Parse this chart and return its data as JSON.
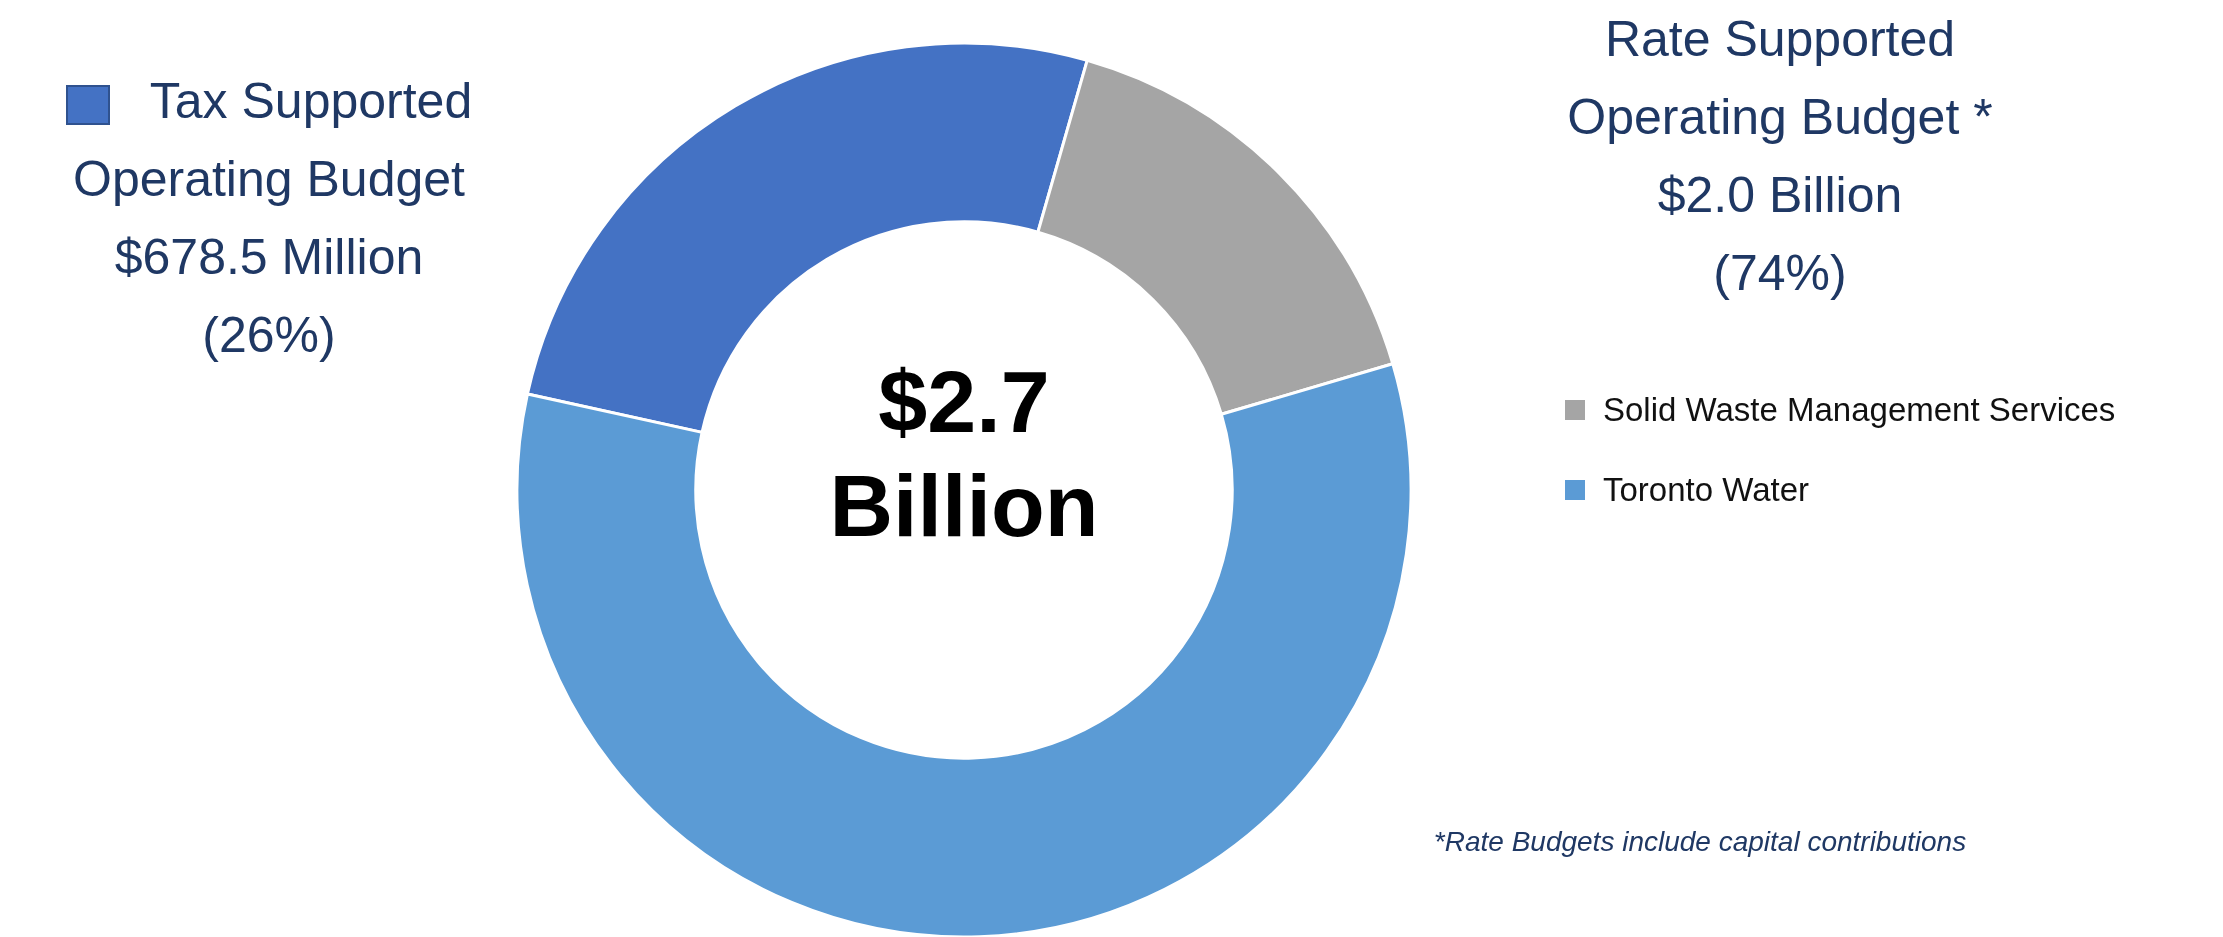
{
  "chart_data": {
    "type": "donut",
    "categories": [
      "Tax Supported Operating Budget",
      "Solid Waste Management Services",
      "Toronto Water"
    ],
    "values": [
      26,
      16,
      58
    ],
    "colors": [
      "#4472c4",
      "#a5a5a5",
      "#5b9bd5"
    ],
    "legend": "right",
    "annotations": [
      "$678.5 Million\n(26%)",
      "Rate Supported\nOperating Budget *\n$2.0 Billion\n(74%)",
      "$2.7\nBillion",
      "*Rate Budgets include capital contributions"
    ]
  }
}
